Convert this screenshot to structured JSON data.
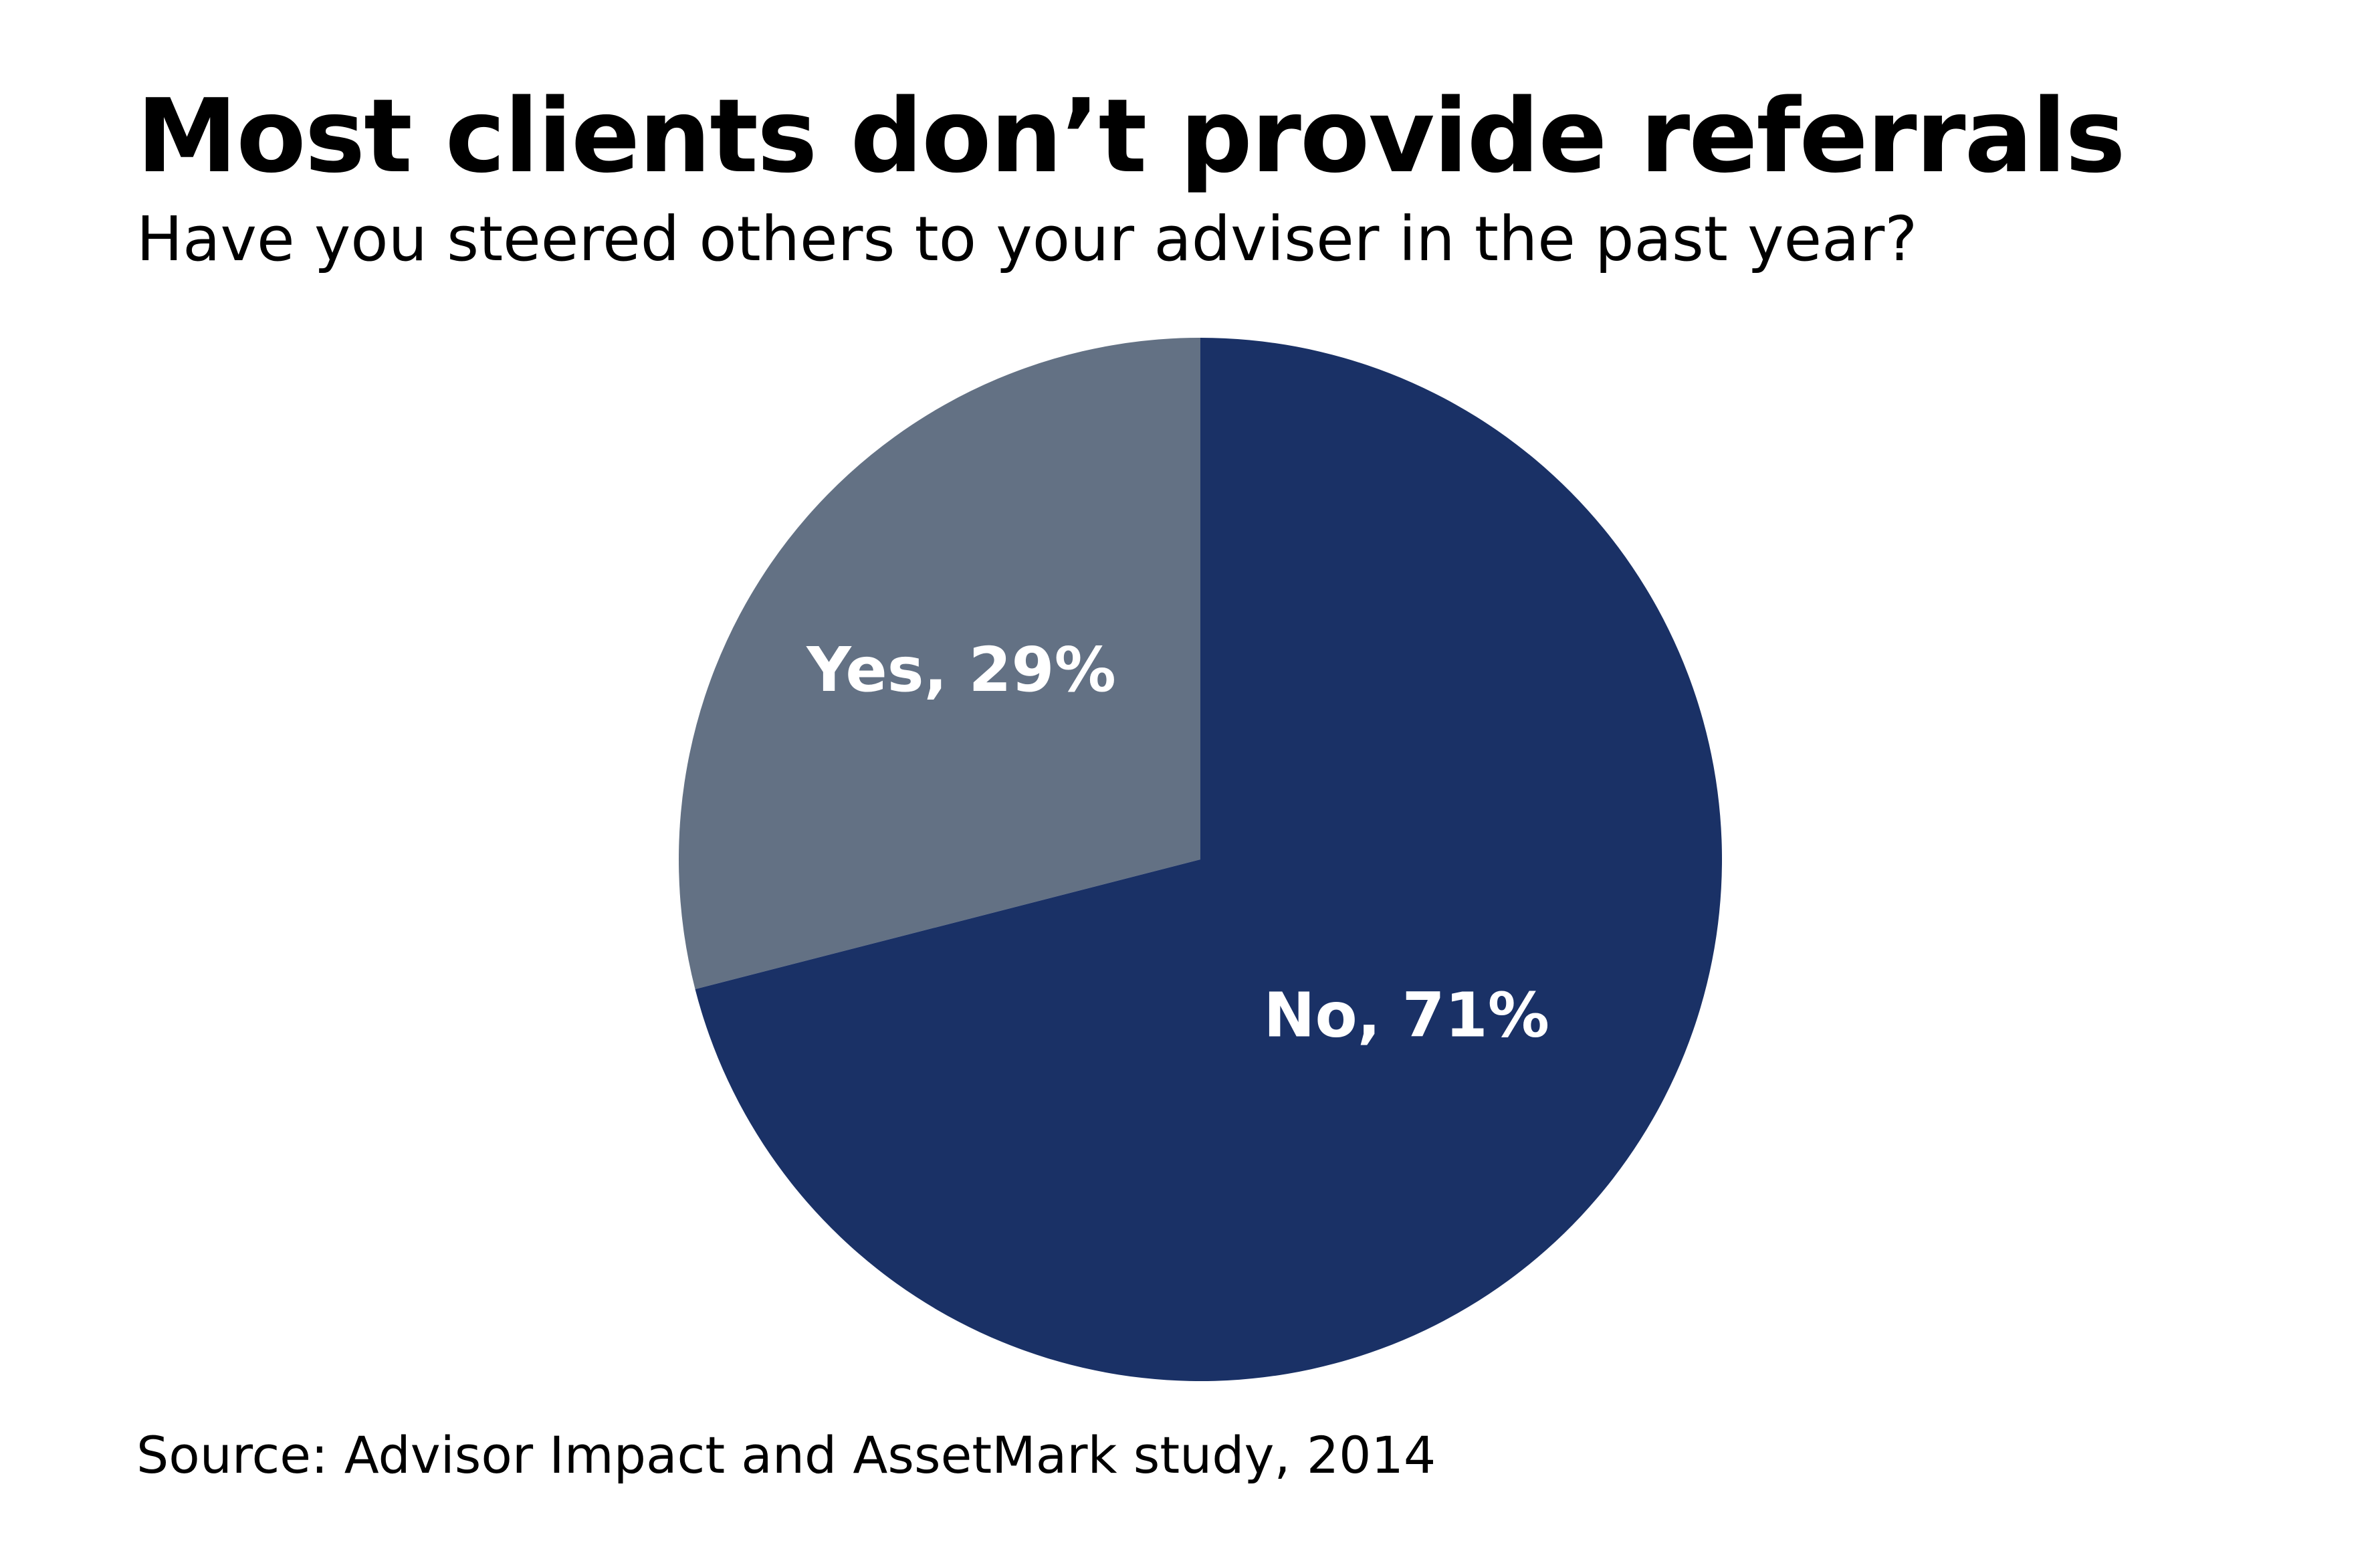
{
  "chart_data": {
    "type": "pie",
    "title": "Most clients don’t provide referrals",
    "subtitle": "Have you steered others to your adviser in the past year?",
    "slices": [
      {
        "label": "Yes",
        "value": 29,
        "display": "Yes, 29%",
        "color": "#637184"
      },
      {
        "label": "No",
        "value": 71,
        "display": "No, 71%",
        "color": "#1a3166"
      }
    ],
    "legend": "none",
    "source": "Source: Advisor Impact and AssetMark study, 2014"
  }
}
